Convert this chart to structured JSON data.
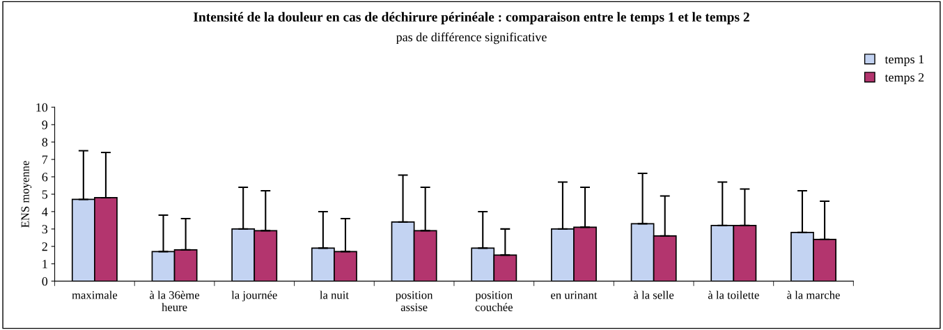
{
  "chart_data": {
    "type": "bar",
    "title": "Intensité de la douleur en cas de déchirure périnéale : comparaison entre le temps 1 et le temps 2",
    "subtitle": "pas de différence significative",
    "ylabel": "ENS moyenne",
    "categories": [
      "maximale",
      "à la 36ème\nheure",
      "la journée",
      "la nuit",
      "position\nassise",
      "position\ncouchée",
      "en urinant",
      "à la selle",
      "à la toilette",
      "à la marche"
    ],
    "series": [
      {
        "name": "temps 1",
        "color": "#c3d3f2",
        "values": [
          4.7,
          1.7,
          3.0,
          1.9,
          3.4,
          1.9,
          3.0,
          3.3,
          3.2,
          2.8
        ],
        "errors": [
          [
            4.7,
            7.5
          ],
          [
            1.7,
            3.8
          ],
          [
            3.0,
            5.4
          ],
          [
            1.9,
            4.0
          ],
          [
            3.4,
            6.1
          ],
          [
            1.9,
            4.0
          ],
          [
            3.0,
            5.7
          ],
          [
            3.3,
            6.2
          ],
          [
            3.2,
            5.7
          ],
          [
            2.8,
            5.2
          ]
        ]
      },
      {
        "name": "temps 2",
        "color": "#b3356e",
        "values": [
          4.8,
          1.8,
          2.9,
          1.7,
          2.9,
          1.5,
          3.1,
          2.6,
          3.2,
          2.4
        ],
        "errors": [
          [
            4.8,
            7.4
          ],
          [
            1.8,
            3.6
          ],
          [
            2.9,
            5.2
          ],
          [
            1.7,
            3.6
          ],
          [
            2.9,
            5.4
          ],
          [
            1.5,
            3.0
          ],
          [
            3.1,
            5.4
          ],
          [
            2.6,
            4.9
          ],
          [
            3.2,
            5.3
          ],
          [
            2.4,
            4.6
          ]
        ]
      }
    ],
    "ylim": [
      0,
      10
    ],
    "yticks": [
      0,
      1,
      2,
      3,
      4,
      5,
      6,
      7,
      8,
      9,
      10
    ],
    "grid": false,
    "legend": "top right"
  }
}
